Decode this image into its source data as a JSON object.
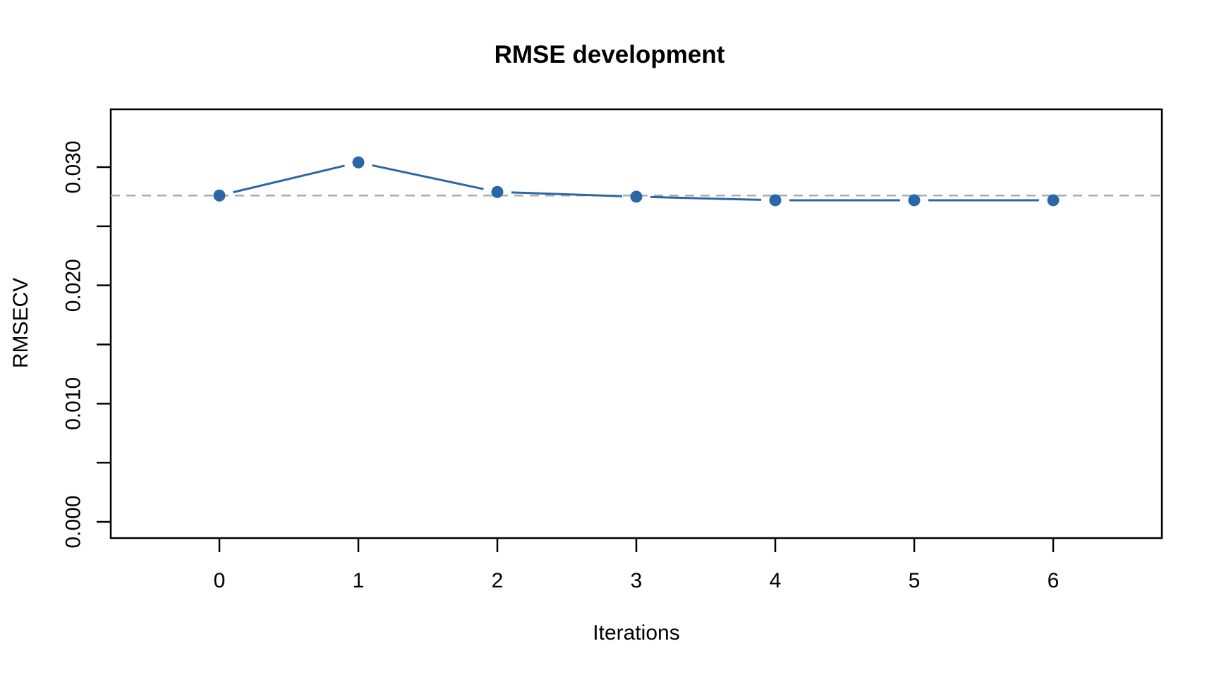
{
  "chart_data": {
    "type": "line",
    "title": "RMSE development",
    "xlabel": "Iterations",
    "ylabel": "RMSECV",
    "x": [
      0,
      1,
      2,
      3,
      4,
      5,
      6
    ],
    "series": [
      {
        "name": "RMSECV",
        "values": [
          0.0276,
          0.0304,
          0.0279,
          0.0275,
          0.0272,
          0.0272,
          0.0272
        ]
      }
    ],
    "reference_line": {
      "value": 0.0276,
      "style": "dashed",
      "color": "#ababab"
    },
    "x_ticks": [
      0,
      1,
      2,
      3,
      4,
      5,
      6
    ],
    "x_tick_labels": [
      "0",
      "1",
      "2",
      "3",
      "4",
      "5",
      "6"
    ],
    "y_ticks": [
      0.0,
      0.005,
      0.01,
      0.015,
      0.02,
      0.025,
      0.03
    ],
    "y_tick_labels": [
      "0.000",
      "",
      "0.010",
      "",
      "0.020",
      "",
      "0.030"
    ],
    "xlim": [
      -0.78,
      6.78
    ],
    "ylim": [
      -0.0014,
      0.0349
    ],
    "grid": false,
    "legend": "none",
    "line_color": "#2b67a6",
    "point_color": "#2b67a6",
    "axis_color": "#000000",
    "background_color": "#ffffff",
    "marker": "filled-circle",
    "line_style": "points-with-gapped-segments"
  }
}
